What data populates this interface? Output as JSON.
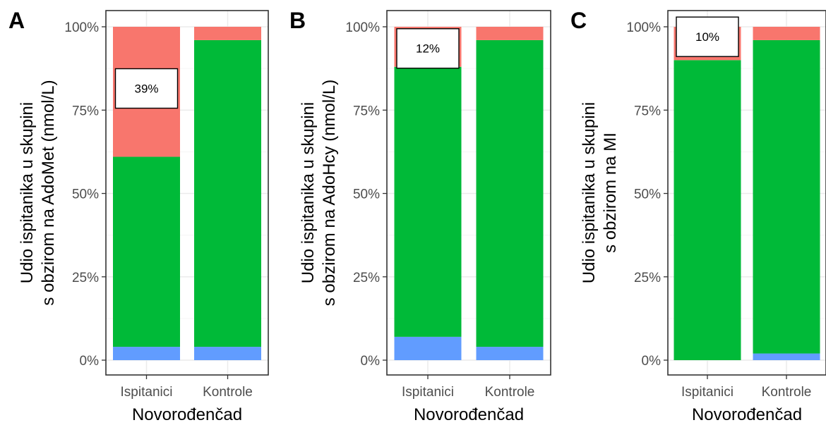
{
  "colors": {
    "top": "#F8766D",
    "middle": "#00BA38",
    "bottom": "#619CFF",
    "grid_major": "#ebebeb",
    "grid_minor": "#f5f5f5",
    "border": "#333333"
  },
  "chart_data": [
    {
      "type": "bar",
      "stacked": true,
      "panel": "A",
      "categories": [
        "Ispitanici",
        "Kontrole"
      ],
      "xlabel": "Novorođenčad",
      "ylabel": [
        "Udio ispitanika u skupini",
        "s obzirom na AdoMet (nmol/L)"
      ],
      "ylim": [
        0,
        1
      ],
      "yticks": [
        "0%",
        "25%",
        "50%",
        "75%",
        "100%"
      ],
      "grid": true,
      "series": [
        {
          "color_key": "bottom",
          "values": [
            0.04,
            0.04
          ]
        },
        {
          "color_key": "middle",
          "values": [
            0.57,
            0.92
          ]
        },
        {
          "color_key": "top",
          "values": [
            0.39,
            0.04
          ]
        }
      ],
      "annotation": {
        "text": "39%",
        "category": "Ispitanici",
        "y": 0.815
      }
    },
    {
      "type": "bar",
      "stacked": true,
      "panel": "B",
      "categories": [
        "Ispitanici",
        "Kontrole"
      ],
      "xlabel": "Novorođenčad",
      "ylabel": [
        "Udio ispitanika u skupini",
        "s obzirom na AdoHcy (nmol/L)"
      ],
      "ylim": [
        0,
        1
      ],
      "yticks": [
        "0%",
        "25%",
        "50%",
        "75%",
        "100%"
      ],
      "grid": true,
      "series": [
        {
          "color_key": "bottom",
          "values": [
            0.07,
            0.04
          ]
        },
        {
          "color_key": "middle",
          "values": [
            0.81,
            0.92
          ]
        },
        {
          "color_key": "top",
          "values": [
            0.12,
            0.04
          ]
        }
      ],
      "annotation": {
        "text": "12%",
        "category": "Ispitanici",
        "y": 0.935
      }
    },
    {
      "type": "bar",
      "stacked": true,
      "panel": "C",
      "categories": [
        "Ispitanici",
        "Kontrole"
      ],
      "xlabel": "Novorođenčad",
      "ylabel": [
        "Udio ispitanika u skupini",
        "s obzirom na MI"
      ],
      "ylim": [
        0,
        1
      ],
      "yticks": [
        "0%",
        "25%",
        "50%",
        "75%",
        "100%"
      ],
      "grid": true,
      "series": [
        {
          "color_key": "bottom",
          "values": [
            0.0,
            0.02
          ]
        },
        {
          "color_key": "middle",
          "values": [
            0.9,
            0.94
          ]
        },
        {
          "color_key": "top",
          "values": [
            0.1,
            0.04
          ]
        }
      ],
      "annotation": {
        "text": "10%",
        "category": "Ispitanici",
        "y": 0.97
      }
    }
  ]
}
